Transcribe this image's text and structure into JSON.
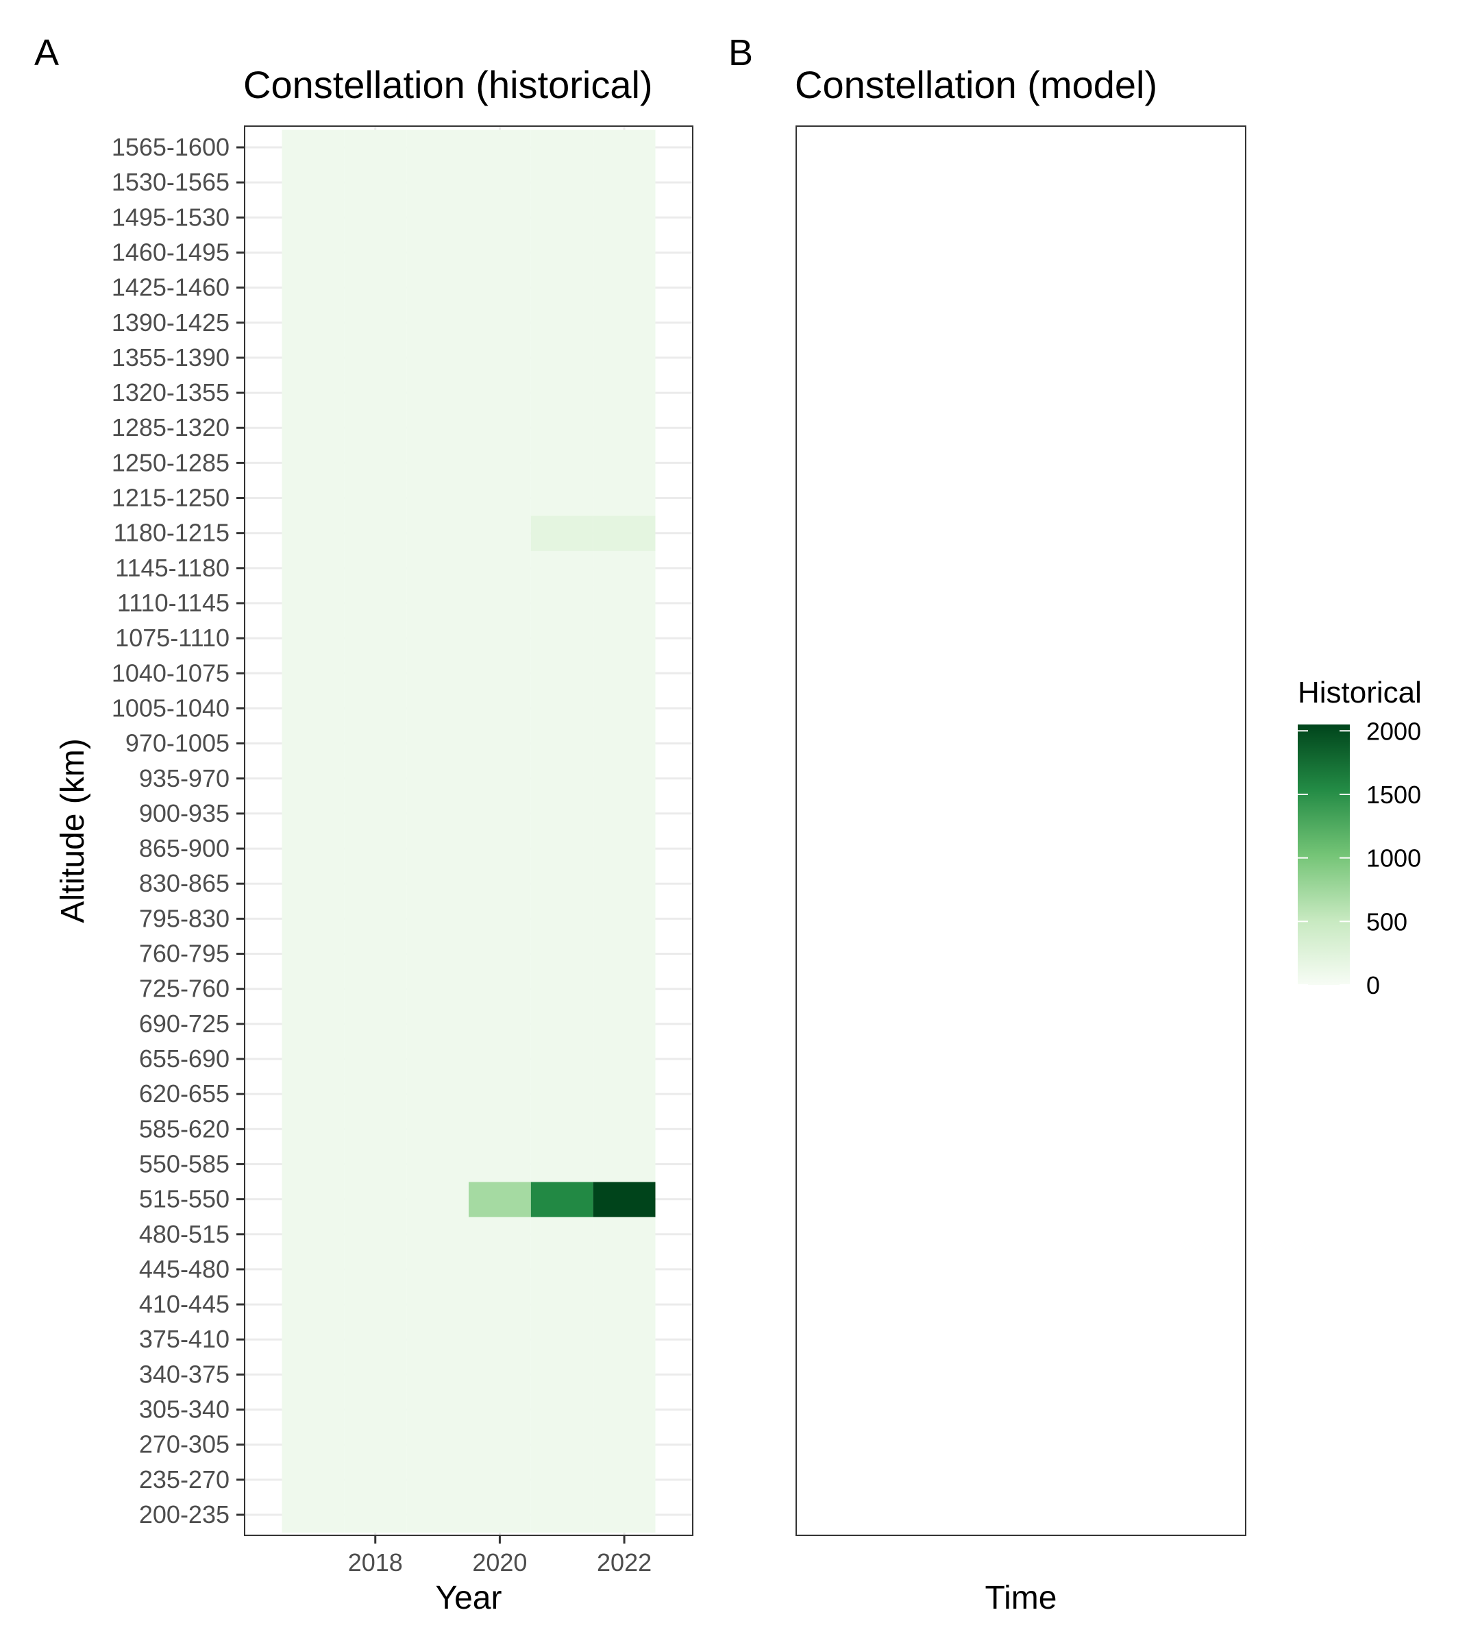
{
  "panels": {
    "a": {
      "letter": "A",
      "title": "Constellation (historical)",
      "xlabel": "Year",
      "ylabel": "Altitude (km)"
    },
    "b": {
      "letter": "B",
      "title": "Constellation (model)",
      "xlabel": "Time"
    }
  },
  "legend": {
    "title": "Historical",
    "labels": [
      "0",
      "500",
      "1000",
      "1500",
      "2000"
    ]
  },
  "chart_data": [
    {
      "type": "heatmap",
      "title": "Constellation (historical)",
      "xlabel": "Year",
      "ylabel": "Altitude (km)",
      "x": [
        2017,
        2018,
        2019,
        2020,
        2021,
        2022
      ],
      "x_ticks": [
        2018,
        2020,
        2022
      ],
      "xlim": [
        2016.5,
        2022.5
      ],
      "categories": [
        "200-235",
        "235-270",
        "270-305",
        "305-340",
        "340-375",
        "375-410",
        "410-445",
        "445-480",
        "480-515",
        "515-550",
        "550-585",
        "585-620",
        "620-655",
        "655-690",
        "690-725",
        "725-760",
        "760-795",
        "795-830",
        "830-865",
        "865-900",
        "900-935",
        "935-970",
        "970-1005",
        "1005-1040",
        "1040-1075",
        "1075-1110",
        "1110-1145",
        "1145-1180",
        "1180-1215",
        "1215-1250",
        "1250-1285",
        "1285-1320",
        "1320-1355",
        "1355-1390",
        "1390-1425",
        "1425-1460",
        "1460-1495",
        "1495-1530",
        "1530-1565",
        "1565-1600"
      ],
      "cells": [
        {
          "y": "1215-1250",
          "x": 2020,
          "value": 40
        },
        {
          "y": "1215-1250",
          "x": 2021,
          "value": 60
        },
        {
          "y": "1215-1250",
          "x": 2022,
          "value": 80
        },
        {
          "y": "1180-1215",
          "x": 2020,
          "value": 40
        },
        {
          "y": "1180-1215",
          "x": 2021,
          "value": 200
        },
        {
          "y": "1180-1215",
          "x": 2022,
          "value": 200
        },
        {
          "y": "900-935",
          "x": 2021,
          "value": 15
        },
        {
          "y": "900-935",
          "x": 2022,
          "value": 15
        },
        {
          "y": "550-585",
          "x": 2021,
          "value": 60
        },
        {
          "y": "550-585",
          "x": 2022,
          "value": 60
        },
        {
          "y": "515-550",
          "x": 2019,
          "value": 60
        },
        {
          "y": "515-550",
          "x": 2020,
          "value": 720
        },
        {
          "y": "515-550",
          "x": 2021,
          "value": 1550
        },
        {
          "y": "515-550",
          "x": 2022,
          "value": 2050
        },
        {
          "y": "480-515",
          "x": 2020,
          "value": 25
        },
        {
          "y": "480-515",
          "x": 2021,
          "value": 35
        },
        {
          "y": "480-515",
          "x": 2022,
          "value": 35
        },
        {
          "y": "410-445",
          "x": 2019,
          "value": 35
        },
        {
          "y": "410-445",
          "x": 2020,
          "value": 35
        },
        {
          "y": "410-445",
          "x": 2021,
          "value": 15
        },
        {
          "y": "340-375",
          "x": 2020,
          "value": 35
        },
        {
          "y": "340-375",
          "x": 2021,
          "value": 40
        },
        {
          "y": "305-340",
          "x": 2020,
          "value": 15
        }
      ],
      "baseline_value": 0,
      "color_scale": {
        "low": "#f7fcf5",
        "mid1": "#c7e9c0",
        "mid2": "#74c476",
        "mid3": "#238b45",
        "high": "#00441b",
        "limits": [
          0,
          2050
        ]
      },
      "legend": {
        "title": "Historical",
        "ticks": [
          0,
          500,
          1000,
          1500,
          2000
        ],
        "placement": "right"
      },
      "grid": true
    },
    {
      "type": "heatmap",
      "title": "Constellation (model)",
      "xlabel": "Time",
      "cells": []
    }
  ]
}
